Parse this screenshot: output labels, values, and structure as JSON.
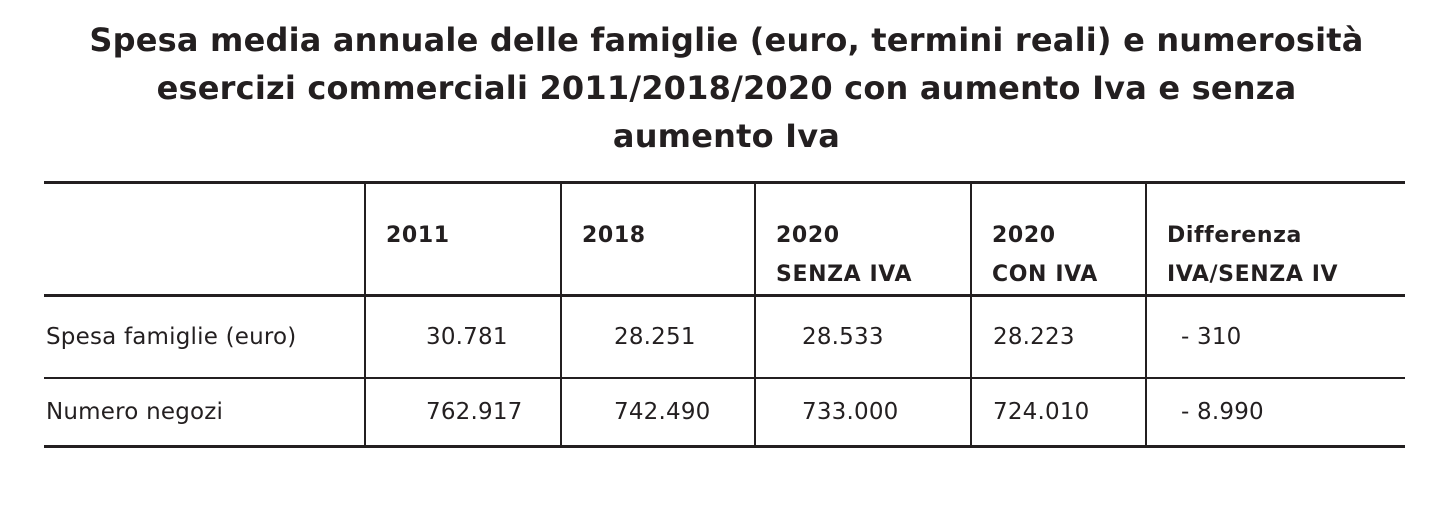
{
  "title": {
    "line1": "Spesa media annuale delle famiglie (euro, termini reali) e numerosità",
    "line2": "esercizi commerciali 2011/2018/2020 con aumento Iva e senza",
    "line3": "aumento Iva"
  },
  "table": {
    "headers": [
      {
        "line1": "",
        "line2": ""
      },
      {
        "line1": "2011",
        "line2": ""
      },
      {
        "line1": "2018",
        "line2": ""
      },
      {
        "line1": "2020",
        "line2": "SENZA IVA"
      },
      {
        "line1": "2020",
        "line2": "CON IVA"
      },
      {
        "line1": "Differenza",
        "line2": "IVA/SENZA IV"
      }
    ],
    "rows": [
      {
        "label": "Spesa famiglie (euro)",
        "values": [
          "30.781",
          "28.251",
          "28.533",
          "28.223",
          "- 310"
        ]
      },
      {
        "label": "Numero negozi",
        "values": [
          "762.917",
          "742.490",
          "733.000",
          "724.010",
          "- 8.990"
        ]
      }
    ]
  }
}
